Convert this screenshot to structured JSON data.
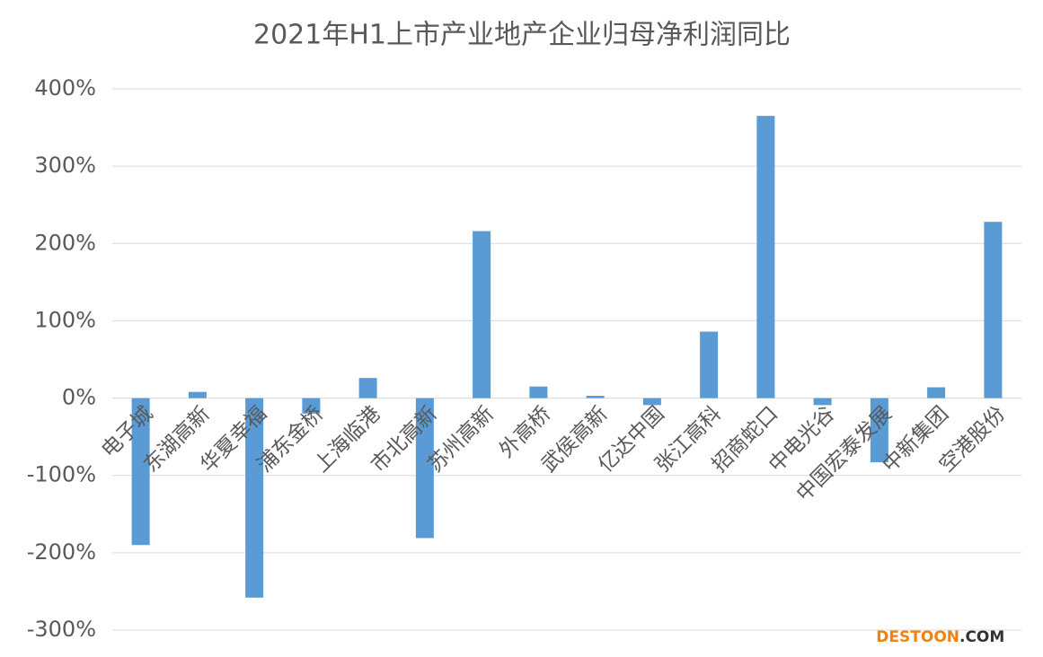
{
  "chart_data": {
    "type": "bar",
    "title": "2021年H1上市产业地产企业归母净利润同比",
    "categories": [
      "电子城",
      "东湖高新",
      "华夏幸福",
      "浦东金桥",
      "上海临港",
      "市北高新",
      "苏州高新",
      "外高桥",
      "武侯高新",
      "亿达中国",
      "张江高科",
      "招商蛇口",
      "中电光谷",
      "中国宏泰发展",
      "中新集团",
      "空港股份"
    ],
    "values": [
      -190,
      8,
      -258,
      -20,
      26,
      -181,
      216,
      15,
      3,
      -9,
      86,
      365,
      -9,
      -83,
      14,
      228
    ],
    "color": "#5b9bd5",
    "ylim": [
      -300,
      400
    ],
    "yticks": [
      {
        "value": -300,
        "label": "-300%"
      },
      {
        "value": -200,
        "label": "-200%"
      },
      {
        "value": -100,
        "label": "-100%"
      },
      {
        "value": 0,
        "label": "0%"
      },
      {
        "value": 100,
        "label": "100%"
      },
      {
        "value": 200,
        "label": "200%"
      },
      {
        "value": 300,
        "label": "300%"
      },
      {
        "value": 400,
        "label": "400%"
      }
    ],
    "grid": true
  },
  "watermark": {
    "brand": "DESTOON",
    "suffix": ".COM"
  }
}
